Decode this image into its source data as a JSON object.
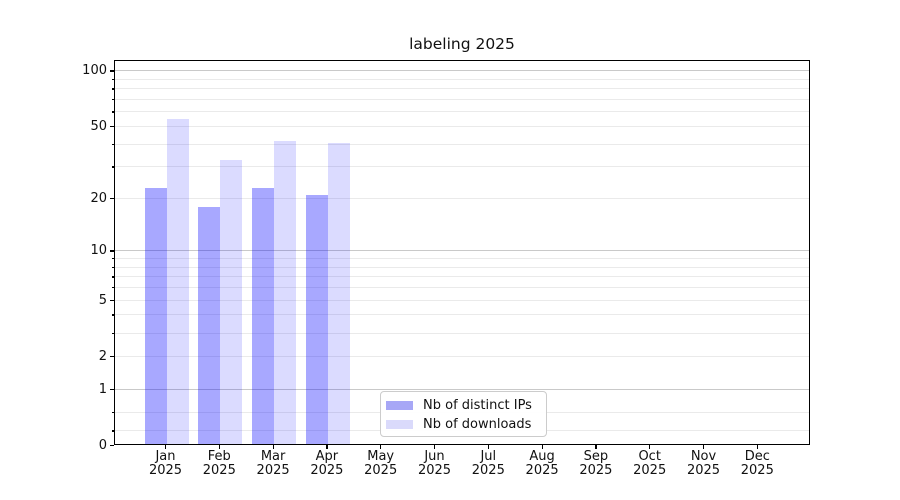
{
  "title": "labeling 2025",
  "colors": {
    "ips_bar": "rgba(0,0,255,0.34)",
    "downloads_bar": "rgba(0,0,255,0.14)",
    "ips_swatch": "#a7a7f6",
    "downloads_swatch": "#dadafb",
    "grid_major": "#c9c9c9",
    "grid_minor": "#eaeaea",
    "spine": "#000000"
  },
  "chart_data": {
    "type": "bar",
    "title": "labeling 2025",
    "categories": [
      "Jan",
      "Feb",
      "Mar",
      "Apr",
      "May",
      "Jun",
      "Jul",
      "Aug",
      "Sep",
      "Oct",
      "Nov",
      "Dec"
    ],
    "year_label": "2025",
    "series": [
      {
        "name": "Nb of distinct IPs",
        "values": [
          23,
          18,
          23,
          21,
          0,
          0,
          0,
          0,
          0,
          0,
          0,
          0
        ]
      },
      {
        "name": "Nb of downloads",
        "values": [
          55,
          33,
          42,
          41,
          0,
          0,
          0,
          0,
          0,
          0,
          0,
          0
        ]
      }
    ],
    "yscale": "log1p",
    "ylim": [
      0,
      110
    ],
    "yticks": [
      0,
      1,
      2,
      5,
      10,
      20,
      50,
      100
    ],
    "major_gridlines": [
      1,
      10,
      100
    ],
    "minor_gridlines": [
      0.2,
      0.5,
      2,
      3,
      4,
      5,
      6,
      7,
      8,
      9,
      20,
      30,
      40,
      50,
      60,
      70,
      80,
      90
    ],
    "grid": "on",
    "legend_position": "bottom-center"
  },
  "legend": {
    "items": [
      {
        "label": "Nb of distinct IPs"
      },
      {
        "label": "Nb of downloads"
      }
    ]
  }
}
